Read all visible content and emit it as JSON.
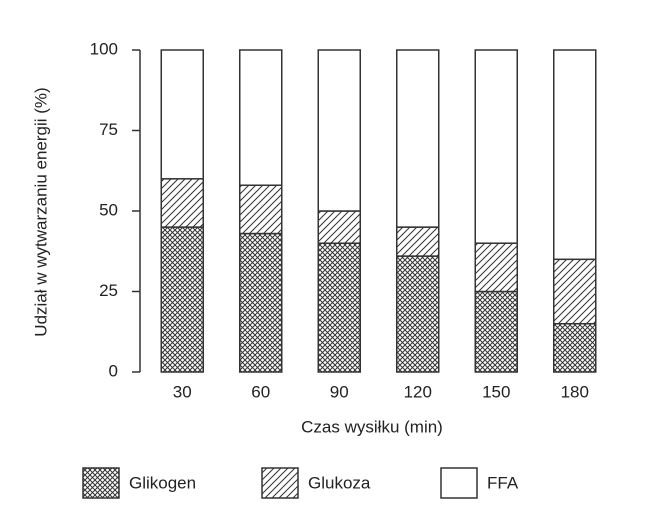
{
  "chart_data": {
    "type": "stacked-bar",
    "y_label": "Udział w wytwarzaniu energii (%)",
    "x_label": "Czas wysiłku (min)",
    "categories": [
      "30",
      "60",
      "90",
      "120",
      "150",
      "180"
    ],
    "series": [
      {
        "name": "Glikogen",
        "color": "#333333",
        "pattern": "crosshatch",
        "values": [
          45,
          43,
          40,
          36,
          25,
          15
        ]
      },
      {
        "name": "Glukoza",
        "color": "#333333",
        "pattern": "diagonal",
        "values": [
          15,
          15,
          10,
          9,
          15,
          20
        ]
      },
      {
        "name": "FFA",
        "color": "#333333",
        "pattern": "none",
        "values": [
          40,
          42,
          50,
          55,
          60,
          65
        ]
      }
    ],
    "ylim": [
      0,
      100
    ],
    "yticks": [
      0,
      25,
      50,
      75,
      100
    ],
    "grid": false
  }
}
